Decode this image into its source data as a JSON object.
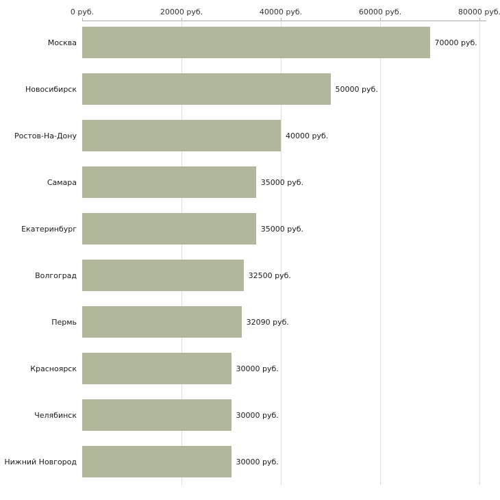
{
  "chart_data": {
    "type": "bar",
    "orientation": "horizontal",
    "title": "",
    "categories": [
      "Москва",
      "Новосибирск",
      "Ростов-На-Дону",
      "Самара",
      "Екатеринбург",
      "Волгоград",
      "Пермь",
      "Красноярск",
      "Челябинск",
      "Нижний Новгород"
    ],
    "values": [
      70000,
      50000,
      40000,
      35000,
      35000,
      32500,
      32090,
      30000,
      30000,
      30000
    ],
    "value_labels": [
      "70000 руб.",
      "50000 руб.",
      "40000 руб.",
      "35000 руб.",
      "35000 руб.",
      "32500 руб.",
      "32090 руб.",
      "30000 руб.",
      "30000 руб.",
      "30000 руб."
    ],
    "x_ticks": [
      0,
      20000,
      40000,
      60000,
      80000
    ],
    "x_tick_labels": [
      "0 руб.",
      "20000 руб.",
      "40000 руб.",
      "60000 руб.",
      "80000 руб."
    ],
    "xlim": [
      0,
      80000
    ],
    "xlabel": "",
    "ylabel": "",
    "grid": true,
    "legend": "none",
    "bar_color": "#b1b79b",
    "axis_color": "#aaaaaa",
    "grid_color": "#dedede",
    "text_color": "#1a1a1a",
    "background_color": "#ffffff"
  }
}
